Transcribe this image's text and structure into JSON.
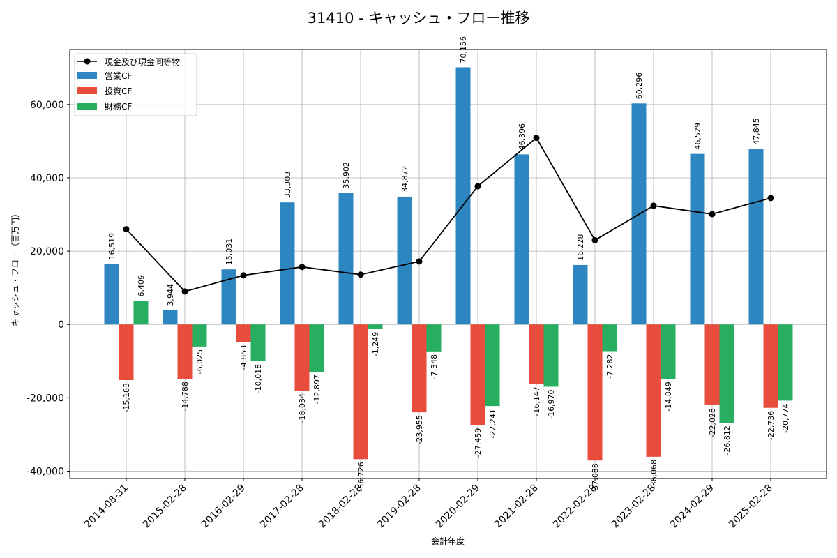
{
  "chart_data": {
    "type": "bar",
    "title": "31410 - キャッシュ・フロー推移",
    "xlabel": "会計年度",
    "ylabel": "キャッシュ・フロー（百万円）",
    "ylim": [
      -42000,
      75000
    ],
    "yticks": [
      -40000,
      -20000,
      0,
      20000,
      40000,
      60000
    ],
    "ytick_labels": [
      "-40,000",
      "-20,000",
      "0",
      "20,000",
      "40,000",
      "60,000"
    ],
    "grid": true,
    "legend_position": "top-left",
    "categories": [
      "2014-08-31",
      "2015-02-28",
      "2016-02-29",
      "2017-02-28",
      "2018-02-28",
      "2019-02-28",
      "2020-02-29",
      "2021-02-28",
      "2022-02-28",
      "2023-02-28",
      "2024-02-29",
      "2025-02-28"
    ],
    "series": [
      {
        "name": "営業CF",
        "color": "#2e86c1",
        "values": [
          16519,
          3944,
          15031,
          33303,
          35902,
          34872,
          70156,
          46396,
          16228,
          60296,
          46529,
          47845
        ],
        "labels": [
          "16,519",
          "3,944",
          "15,031",
          "33,303",
          "35,902",
          "34,872",
          "70,156",
          "46,396",
          "16,228",
          "60,296",
          "46,529",
          "47,845"
        ]
      },
      {
        "name": "投資CF",
        "color": "#e74c3c",
        "values": [
          -15183,
          -14788,
          -4853,
          -18034,
          -36726,
          -23955,
          -27459,
          -16147,
          -37088,
          -36068,
          -22028,
          -22736
        ],
        "labels": [
          "-15,183",
          "-14,788",
          "-4,853",
          "-18,034",
          "-36,726",
          "-23,955",
          "-27,459",
          "-16,147",
          "-37,088",
          "-36,068",
          "-22,028",
          "-22,736"
        ]
      },
      {
        "name": "財務CF",
        "color": "#27ae60",
        "values": [
          6409,
          -6025,
          -10018,
          -12897,
          -1249,
          -7348,
          -22241,
          -16970,
          -7282,
          -14849,
          -26812,
          -20774
        ],
        "labels": [
          "6,409",
          "-6,025",
          "-10,018",
          "-12,897",
          "-1,249",
          "-7,348",
          "-22,241",
          "-16,970",
          "-7,282",
          "-14,849",
          "-26,812",
          "-20,774"
        ]
      }
    ],
    "line": {
      "name": "現金及び現金同等物",
      "color": "#000000",
      "values": [
        26000,
        9000,
        13400,
        15700,
        13600,
        17200,
        37700,
        50900,
        23000,
        32400,
        30100,
        34500
      ]
    }
  }
}
